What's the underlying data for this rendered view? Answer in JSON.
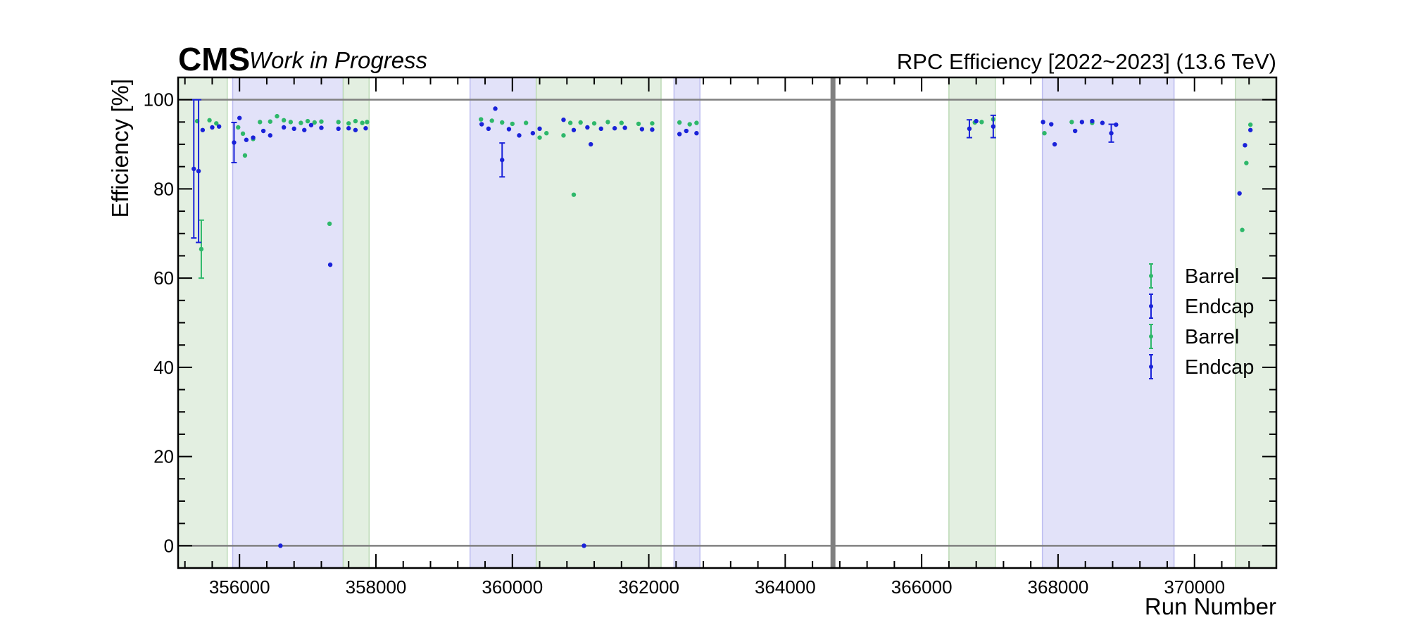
{
  "chart_data": {
    "type": "scatter",
    "experiment_label": "CMS",
    "status_label": "Work in Progress",
    "title": "RPC Efficiency [2022~2023] (13.6 TeV)",
    "xlabel": "Run Number",
    "ylabel": "Efficiency [%]",
    "xlim": [
      355100,
      371200
    ],
    "ylim": [
      -5,
      105
    ],
    "xticks": [
      356000,
      358000,
      360000,
      362000,
      364000,
      366000,
      368000,
      370000
    ],
    "yticks": [
      0,
      20,
      40,
      60,
      80,
      100
    ],
    "grid": false,
    "reference_lines_y": [
      0,
      100
    ],
    "year_separator_x": 364700,
    "legend_position": "right",
    "legend": [
      "Barrel",
      "Endcap",
      "Barrel",
      "Endcap"
    ],
    "colors": {
      "barrel": "#2eb86a",
      "endcap": "#1a22d9",
      "band_green": "#e3efe1",
      "band_blue": "#e2e2f9",
      "reference_line": "#808080"
    },
    "bands": [
      {
        "x0": 355100,
        "x1": 355820,
        "color": "green"
      },
      {
        "x0": 355900,
        "x1": 357520,
        "color": "blue"
      },
      {
        "x0": 357520,
        "x1": 357900,
        "color": "green"
      },
      {
        "x0": 359380,
        "x1": 360350,
        "color": "blue"
      },
      {
        "x0": 360350,
        "x1": 362180,
        "color": "green"
      },
      {
        "x0": 362370,
        "x1": 362750,
        "color": "blue"
      },
      {
        "x0": 366400,
        "x1": 367080,
        "color": "green"
      },
      {
        "x0": 367770,
        "x1": 369700,
        "color": "blue"
      },
      {
        "x0": 370600,
        "x1": 371200,
        "color": "green"
      }
    ],
    "series": [
      {
        "name": "Barrel",
        "color": "#2eb86a",
        "points": [
          {
            "x": 355380,
            "y": 95.2
          },
          {
            "x": 355440,
            "y": 66.5,
            "err": 6.5
          },
          {
            "x": 355560,
            "y": 95.4
          },
          {
            "x": 355660,
            "y": 94.7
          },
          {
            "x": 355980,
            "y": 93.8
          },
          {
            "x": 356050,
            "y": 92.4
          },
          {
            "x": 356080,
            "y": 87.5
          },
          {
            "x": 356200,
            "y": 91.2
          },
          {
            "x": 356300,
            "y": 95.0
          },
          {
            "x": 356450,
            "y": 95.1
          },
          {
            "x": 356550,
            "y": 96.3
          },
          {
            "x": 356650,
            "y": 95.4
          },
          {
            "x": 356750,
            "y": 95.0
          },
          {
            "x": 356900,
            "y": 94.8
          },
          {
            "x": 357000,
            "y": 95.2
          },
          {
            "x": 357100,
            "y": 94.9
          },
          {
            "x": 357200,
            "y": 95.1
          },
          {
            "x": 357320,
            "y": 72.2
          },
          {
            "x": 357450,
            "y": 95.0
          },
          {
            "x": 357600,
            "y": 94.7
          },
          {
            "x": 357700,
            "y": 95.2
          },
          {
            "x": 357800,
            "y": 94.8
          },
          {
            "x": 357870,
            "y": 95.0
          },
          {
            "x": 359540,
            "y": 95.6
          },
          {
            "x": 359700,
            "y": 95.3
          },
          {
            "x": 359850,
            "y": 94.9
          },
          {
            "x": 360000,
            "y": 94.6
          },
          {
            "x": 360200,
            "y": 94.8
          },
          {
            "x": 360400,
            "y": 91.5
          },
          {
            "x": 360500,
            "y": 92.5
          },
          {
            "x": 360750,
            "y": 92.0
          },
          {
            "x": 360850,
            "y": 94.8
          },
          {
            "x": 360900,
            "y": 78.7
          },
          {
            "x": 361000,
            "y": 94.9
          },
          {
            "x": 361200,
            "y": 94.7
          },
          {
            "x": 361400,
            "y": 95.0
          },
          {
            "x": 361600,
            "y": 94.8
          },
          {
            "x": 361850,
            "y": 94.6
          },
          {
            "x": 362050,
            "y": 94.7
          },
          {
            "x": 362450,
            "y": 94.9
          },
          {
            "x": 362600,
            "y": 94.5
          },
          {
            "x": 362700,
            "y": 94.8
          },
          {
            "x": 366780,
            "y": 94.9
          },
          {
            "x": 366880,
            "y": 95.0
          },
          {
            "x": 367050,
            "y": 95.6
          },
          {
            "x": 367800,
            "y": 92.5
          },
          {
            "x": 368200,
            "y": 95.0
          },
          {
            "x": 368500,
            "y": 94.8
          },
          {
            "x": 370700,
            "y": 70.8
          },
          {
            "x": 370760,
            "y": 85.8
          },
          {
            "x": 370820,
            "y": 94.4
          }
        ]
      },
      {
        "name": "Endcap",
        "color": "#1a22d9",
        "points": [
          {
            "x": 355330,
            "y": 84.5,
            "err": 15.5
          },
          {
            "x": 355400,
            "y": 84.0,
            "err": 16.0
          },
          {
            "x": 355460,
            "y": 93.2
          },
          {
            "x": 355600,
            "y": 93.8
          },
          {
            "x": 355700,
            "y": 94.0
          },
          {
            "x": 355920,
            "y": 90.4,
            "err": 4.5
          },
          {
            "x": 356000,
            "y": 95.9
          },
          {
            "x": 356100,
            "y": 91.0
          },
          {
            "x": 356200,
            "y": 91.5
          },
          {
            "x": 356350,
            "y": 93.0
          },
          {
            "x": 356450,
            "y": 92.0
          },
          {
            "x": 356600,
            "y": 0.0
          },
          {
            "x": 356650,
            "y": 93.8
          },
          {
            "x": 356800,
            "y": 93.5
          },
          {
            "x": 356950,
            "y": 93.2
          },
          {
            "x": 357050,
            "y": 94.3
          },
          {
            "x": 357200,
            "y": 93.7
          },
          {
            "x": 357330,
            "y": 63.0
          },
          {
            "x": 357450,
            "y": 93.5
          },
          {
            "x": 357600,
            "y": 93.6
          },
          {
            "x": 357700,
            "y": 93.2
          },
          {
            "x": 357850,
            "y": 93.6
          },
          {
            "x": 359550,
            "y": 94.5
          },
          {
            "x": 359650,
            "y": 93.5
          },
          {
            "x": 359750,
            "y": 98.0
          },
          {
            "x": 359850,
            "y": 86.5,
            "err": 3.8
          },
          {
            "x": 359950,
            "y": 93.4
          },
          {
            "x": 360100,
            "y": 92.0
          },
          {
            "x": 360300,
            "y": 92.5
          },
          {
            "x": 360400,
            "y": 93.5
          },
          {
            "x": 360750,
            "y": 95.5
          },
          {
            "x": 360900,
            "y": 93.2
          },
          {
            "x": 361050,
            "y": 0.0
          },
          {
            "x": 361100,
            "y": 93.8
          },
          {
            "x": 361150,
            "y": 90.0
          },
          {
            "x": 361300,
            "y": 93.5
          },
          {
            "x": 361500,
            "y": 93.6
          },
          {
            "x": 361650,
            "y": 93.7
          },
          {
            "x": 361900,
            "y": 93.4
          },
          {
            "x": 362050,
            "y": 93.3
          },
          {
            "x": 362450,
            "y": 92.3
          },
          {
            "x": 362550,
            "y": 93.0
          },
          {
            "x": 362700,
            "y": 92.5
          },
          {
            "x": 366700,
            "y": 93.5,
            "err": 2.0
          },
          {
            "x": 366800,
            "y": 95.2
          },
          {
            "x": 367050,
            "y": 94.0,
            "err": 2.5
          },
          {
            "x": 367780,
            "y": 95.0
          },
          {
            "x": 367900,
            "y": 94.5
          },
          {
            "x": 367950,
            "y": 90.0
          },
          {
            "x": 368250,
            "y": 93.0
          },
          {
            "x": 368350,
            "y": 95.0
          },
          {
            "x": 368500,
            "y": 95.2
          },
          {
            "x": 368650,
            "y": 94.8
          },
          {
            "x": 368780,
            "y": 92.5,
            "err": 2.0
          },
          {
            "x": 368850,
            "y": 94.4
          },
          {
            "x": 370660,
            "y": 79.0
          },
          {
            "x": 370740,
            "y": 89.8
          },
          {
            "x": 370820,
            "y": 93.2
          }
        ]
      }
    ]
  }
}
